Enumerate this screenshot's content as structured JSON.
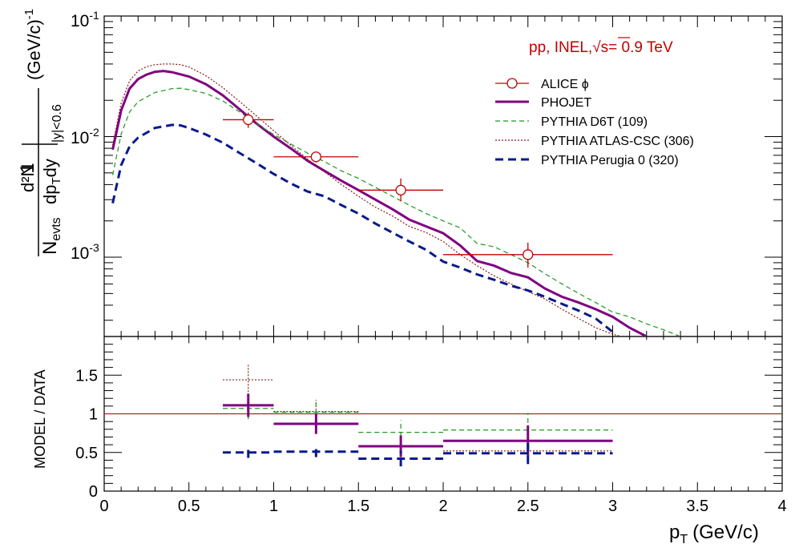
{
  "chart_data": [
    {
      "type": "line",
      "panel": "top",
      "log_y": true,
      "xlim": [
        0,
        4
      ],
      "ylim": [
        0.00022,
        0.1
      ],
      "y_ticks": [
        {
          "value": 0.1,
          "base": "10",
          "exp": "-1"
        },
        {
          "value": 0.01,
          "base": "10",
          "exp": "-2"
        },
        {
          "value": 0.001,
          "base": "10",
          "exp": "-3"
        }
      ],
      "ylabel": {
        "frac_num": "1",
        "frac_den": "N",
        "frac_den_sub": "evts",
        "deriv_num": "d²N",
        "deriv_den": "dp",
        "deriv_den_sub": "T",
        "deriv_den_tail": "dy",
        "range_sub": "|y|<0.6",
        "units": "(GeV/c)",
        "units_exp": "-1"
      },
      "annotation": {
        "pre": "pp, INEL,",
        "sqrt_sym": "√",
        "post": "s= 0.9 TeV"
      },
      "legend_position": "top-right",
      "series": [
        {
          "name": "ALICE ϕ",
          "kind": "points",
          "color": "#c00000",
          "points": [
            {
              "x": 0.85,
              "xlo": 0.7,
              "xhi": 1.0,
              "y": 0.0138,
              "ylo": 0.0118,
              "yhi": 0.0158
            },
            {
              "x": 1.25,
              "xlo": 1.0,
              "xhi": 1.5,
              "y": 0.0068,
              "ylo": 0.0061,
              "yhi": 0.0075
            },
            {
              "x": 1.75,
              "xlo": 1.5,
              "xhi": 2.0,
              "y": 0.0036,
              "ylo": 0.0029,
              "yhi": 0.0045
            },
            {
              "x": 2.5,
              "xlo": 2.0,
              "xhi": 3.0,
              "y": 0.00105,
              "ylo": 0.00082,
              "yhi": 0.00132
            }
          ]
        },
        {
          "name": "PHOJET",
          "kind": "line",
          "color": "#800080",
          "dash": "",
          "width": 3,
          "x": [
            0.05,
            0.1,
            0.15,
            0.2,
            0.25,
            0.3,
            0.35,
            0.4,
            0.5,
            0.6,
            0.7,
            0.8,
            0.9,
            1.0,
            1.1,
            1.2,
            1.3,
            1.4,
            1.5,
            1.6,
            1.7,
            1.8,
            1.9,
            2.0,
            2.1,
            2.2,
            2.3,
            2.4,
            2.5,
            2.6,
            2.7,
            2.8,
            2.9,
            3.0,
            3.1,
            3.2
          ],
          "y": [
            0.0078,
            0.0165,
            0.025,
            0.03,
            0.0327,
            0.0345,
            0.035,
            0.0342,
            0.0315,
            0.0272,
            0.022,
            0.0168,
            0.0128,
            0.01,
            0.008,
            0.0063,
            0.0052,
            0.0043,
            0.0036,
            0.003,
            0.0025,
            0.00205,
            0.0018,
            0.00158,
            0.00125,
            0.00093,
            0.00085,
            0.00074,
            0.00068,
            0.00055,
            0.00047,
            0.00042,
            0.00037,
            0.00032,
            0.00026,
            0.00022
          ]
        },
        {
          "name": "PYTHIA D6T (109)",
          "kind": "line",
          "color": "#1a9a1a",
          "dash": "6,4",
          "width": 1.2,
          "x": [
            0.05,
            0.1,
            0.15,
            0.2,
            0.3,
            0.4,
            0.45,
            0.5,
            0.6,
            0.7,
            0.8,
            0.9,
            1.0,
            1.1,
            1.2,
            1.3,
            1.4,
            1.5,
            1.6,
            1.7,
            1.8,
            1.9,
            2.0,
            2.1,
            2.2,
            2.3,
            2.4,
            2.5,
            2.6,
            2.7,
            2.8,
            2.9,
            3.0,
            3.1,
            3.2,
            3.3,
            3.4
          ],
          "y": [
            0.0048,
            0.0105,
            0.016,
            0.0195,
            0.0232,
            0.025,
            0.0252,
            0.0245,
            0.0228,
            0.0198,
            0.016,
            0.0128,
            0.0104,
            0.0087,
            0.0073,
            0.0062,
            0.0052,
            0.0045,
            0.0038,
            0.0032,
            0.0027,
            0.0023,
            0.002,
            0.00175,
            0.0013,
            0.00122,
            0.00105,
            0.0009,
            0.00073,
            0.0006,
            0.0005,
            0.00042,
            0.00035,
            0.00032,
            0.00028,
            0.00025,
            0.00022
          ]
        },
        {
          "name": "PYTHIA ATLAS-CSC (306)",
          "kind": "line",
          "color": "#8b1a1a",
          "dash": "2,2",
          "width": 1.2,
          "x": [
            0.05,
            0.1,
            0.15,
            0.2,
            0.25,
            0.3,
            0.35,
            0.4,
            0.45,
            0.5,
            0.6,
            0.7,
            0.8,
            0.9,
            1.0,
            1.1,
            1.2,
            1.3,
            1.4,
            1.5,
            1.6,
            1.7,
            1.8,
            1.9,
            2.0,
            2.1,
            2.2,
            2.3,
            2.4,
            2.5,
            2.6,
            2.7,
            2.8,
            2.9,
            3.0,
            3.05
          ],
          "y": [
            0.0085,
            0.019,
            0.029,
            0.035,
            0.038,
            0.0395,
            0.04,
            0.04,
            0.0395,
            0.0378,
            0.032,
            0.0255,
            0.0195,
            0.0148,
            0.0112,
            0.0085,
            0.0065,
            0.0051,
            0.004,
            0.0032,
            0.0026,
            0.0022,
            0.0018,
            0.0016,
            0.00135,
            0.00105,
            0.00085,
            0.0007,
            0.0006,
            0.00052,
            0.00045,
            0.00037,
            0.00031,
            0.00026,
            0.00023,
            0.00022
          ]
        },
        {
          "name": "PYTHIA Perugia 0 (320)",
          "kind": "line",
          "color": "#0a1a8c",
          "dash": "10,6",
          "width": 3,
          "x": [
            0.05,
            0.1,
            0.15,
            0.2,
            0.3,
            0.4,
            0.45,
            0.5,
            0.6,
            0.7,
            0.8,
            0.9,
            1.0,
            1.1,
            1.2,
            1.3,
            1.4,
            1.5,
            1.6,
            1.7,
            1.8,
            1.9,
            2.0,
            2.1,
            2.2,
            2.3,
            2.4,
            2.5,
            2.6,
            2.7,
            2.8,
            2.9,
            3.0
          ],
          "y": [
            0.0028,
            0.0058,
            0.0083,
            0.0098,
            0.0118,
            0.0125,
            0.0124,
            0.0118,
            0.0104,
            0.0089,
            0.0073,
            0.006,
            0.0049,
            0.0041,
            0.0035,
            0.0032,
            0.0027,
            0.0023,
            0.0019,
            0.0016,
            0.00135,
            0.00115,
            0.00092,
            0.00082,
            0.00072,
            0.00065,
            0.00058,
            0.00053,
            0.00047,
            0.00041,
            0.00036,
            0.00031,
            0.00024
          ]
        }
      ]
    },
    {
      "type": "bar",
      "panel": "bottom",
      "xlim": [
        0,
        4
      ],
      "ylim": [
        0,
        2
      ],
      "y_tick_labels": [
        "0",
        "0.5",
        "1",
        "1.5"
      ],
      "y_tick_values": [
        0,
        0.5,
        1,
        1.5
      ],
      "x_tick_labels": [
        "0",
        "0.5",
        "1",
        "1.5",
        "2",
        "2.5",
        "3",
        "3.5",
        "4"
      ],
      "x_tick_values": [
        0,
        0.5,
        1,
        1.5,
        2,
        2.5,
        3,
        3.5,
        4
      ],
      "xlabel": {
        "main": "p",
        "sub": "T",
        "units": "(GeV/c)"
      },
      "ylabel": "MODEL / DATA",
      "reference_line": {
        "y": 1,
        "color": "#b22222"
      },
      "bins": [
        {
          "lo": 0.7,
          "hi": 1.0,
          "x": 0.85
        },
        {
          "lo": 1.0,
          "hi": 1.5,
          "x": 1.25
        },
        {
          "lo": 1.5,
          "hi": 2.0,
          "x": 1.75
        },
        {
          "lo": 2.0,
          "hi": 3.0,
          "x": 2.5
        }
      ],
      "series": [
        {
          "name": "PYTHIA ATLAS-CSC (306)",
          "color": "#8b1a1a",
          "dash": "2,2",
          "width": 1.2,
          "values": [
            1.44,
            1.03,
            null,
            0.52
          ],
          "err": [
            0.2,
            0.15,
            null,
            0.1
          ]
        },
        {
          "name": "PYTHIA D6T (109)",
          "color": "#1a9a1a",
          "dash": "6,4",
          "width": 1.2,
          "values": [
            1.07,
            1.02,
            0.76,
            0.79
          ],
          "err": [
            0.14,
            0.14,
            0.16,
            0.22
          ]
        },
        {
          "name": "PHOJET",
          "color": "#800080",
          "dash": "",
          "width": 3,
          "values": [
            1.11,
            0.87,
            0.58,
            0.65
          ],
          "err": [
            0.15,
            0.13,
            0.14,
            0.2
          ]
        },
        {
          "name": "PYTHIA Perugia 0 (320)",
          "color": "#0a1a8c",
          "dash": "10,6",
          "width": 3,
          "values": [
            0.5,
            0.51,
            0.42,
            0.49
          ],
          "err": [
            0.07,
            0.07,
            0.1,
            0.14
          ]
        }
      ]
    }
  ]
}
